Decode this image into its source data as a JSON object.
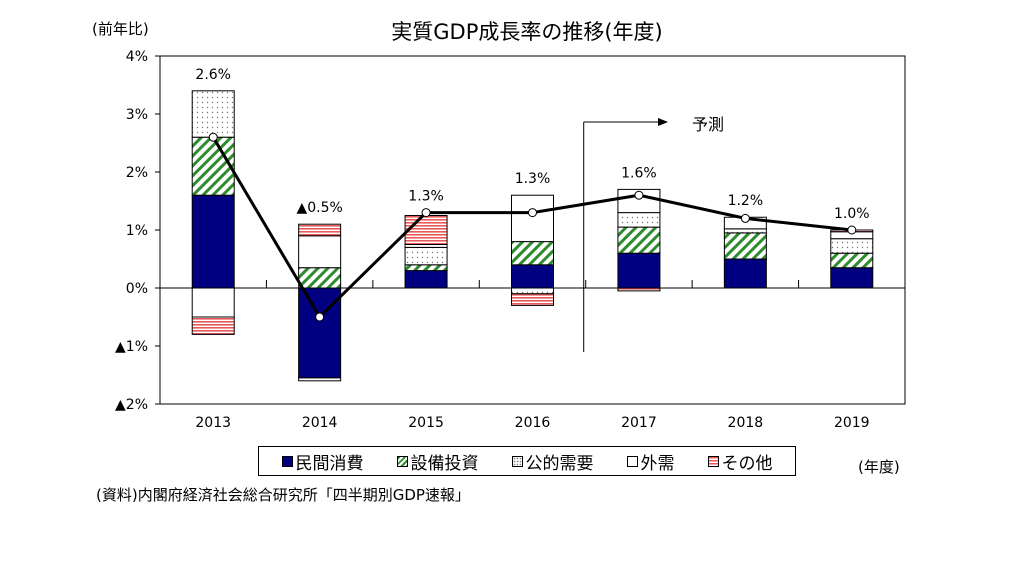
{
  "chart_data": {
    "type": "bar",
    "stacked": true,
    "title": "実質GDP成長率の推移(年度)",
    "ylabel": "(前年比)",
    "xlabel": "(年度)",
    "source": "(資料)内閣府経済社会総合研究所「四半期別GDP速報」",
    "categories": [
      "2013",
      "2014",
      "2015",
      "2016",
      "2017",
      "2018",
      "2019"
    ],
    "ylim": [
      -2,
      4
    ],
    "yticks": [
      4,
      3,
      2,
      1,
      0,
      -1,
      -2
    ],
    "ytick_labels": [
      "4%",
      "3%",
      "2%",
      "1%",
      "0%",
      "▲1%",
      "▲2%"
    ],
    "grid": false,
    "legend_position": "bottom",
    "series": [
      {
        "name": "民間消費",
        "color": "#000080",
        "pattern": "solid",
        "values": [
          1.6,
          -1.55,
          0.3,
          0.4,
          0.6,
          0.5,
          0.35
        ]
      },
      {
        "name": "設備投資",
        "color": "#2e8b2e",
        "pattern": "diagonal",
        "values": [
          1.0,
          0.35,
          0.1,
          0.4,
          0.45,
          0.45,
          0.25
        ]
      },
      {
        "name": "公的需要",
        "color": "#808080",
        "pattern": "dots",
        "values": [
          0.8,
          -0.05,
          0.3,
          -0.1,
          0.25,
          0.07,
          0.25
        ]
      },
      {
        "name": "外需",
        "color": "#ffffff",
        "pattern": "blank",
        "values": [
          -0.5,
          0.55,
          0.05,
          0.8,
          0.4,
          0.2,
          0.12
        ]
      },
      {
        "name": "その他",
        "color": "#e8595a",
        "pattern": "horizontal",
        "values": [
          -0.3,
          0.2,
          0.5,
          -0.2,
          -0.05,
          0,
          0.03
        ]
      }
    ],
    "total": {
      "type": "line",
      "values": [
        2.6,
        -0.5,
        1.3,
        1.3,
        1.6,
        1.2,
        1.0
      ],
      "labels": [
        "2.6%",
        "▲0.5%",
        "1.3%",
        "1.3%",
        "1.6%",
        "1.2%",
        "1.0%"
      ]
    },
    "annotation": {
      "text": "予測",
      "from_category": "2017"
    }
  }
}
